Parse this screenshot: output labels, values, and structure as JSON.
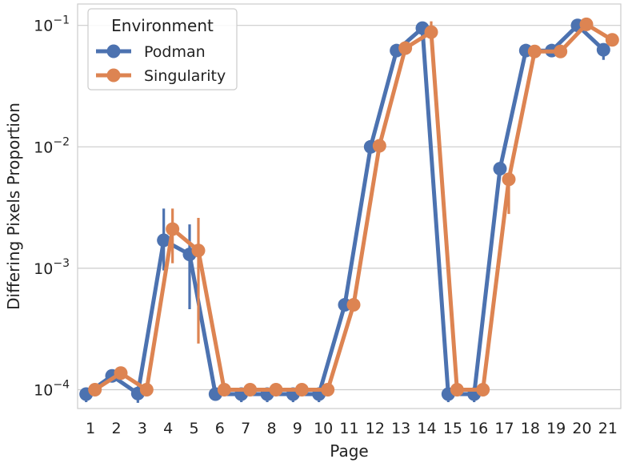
{
  "chart_data": {
    "type": "line",
    "xlabel": "Page",
    "ylabel": "Differing Pixels Proportion",
    "yscale": "log",
    "ylim": [
      7e-05,
      0.15
    ],
    "grid": true,
    "legend_placement": "top-left",
    "legend_title": "Environment",
    "x": [
      1,
      2,
      3,
      4,
      5,
      6,
      7,
      8,
      9,
      10,
      11,
      12,
      13,
      14,
      15,
      16,
      17,
      18,
      19,
      20,
      21
    ],
    "y_ticks": [
      {
        "value": 0.0001,
        "base": "10",
        "exp": "−4"
      },
      {
        "value": 0.001,
        "base": "10",
        "exp": "−3"
      },
      {
        "value": 0.01,
        "base": "10",
        "exp": "−2"
      },
      {
        "value": 0.1,
        "base": "10",
        "exp": "−1"
      }
    ],
    "series": [
      {
        "name": "Podman",
        "color": "#4c72b0",
        "values": [
          9.2e-05,
          0.00013,
          9.3e-05,
          0.0017,
          0.0013,
          9.2e-05,
          9.2e-05,
          9.2e-05,
          9.2e-05,
          9.2e-05,
          0.0005,
          0.01,
          0.062,
          0.095,
          9.2e-05,
          9.2e-05,
          0.0066,
          0.062,
          0.062,
          0.1,
          0.063
        ],
        "err_low": [
          7.9e-05,
          null,
          7.8e-05,
          0.00096,
          0.00046,
          null,
          7.9e-05,
          7.9e-05,
          7.9e-05,
          7.9e-05,
          null,
          null,
          null,
          null,
          7.9e-05,
          7.9e-05,
          null,
          null,
          null,
          null,
          0.052
        ],
        "err_high": [
          null,
          null,
          null,
          0.0031,
          0.0023,
          null,
          null,
          null,
          null,
          null,
          null,
          null,
          null,
          null,
          null,
          null,
          null,
          null,
          null,
          null,
          null
        ]
      },
      {
        "name": "Singularity",
        "color": "#dd8452",
        "values": [
          0.0001,
          0.000137,
          0.0001,
          0.0021,
          0.0014,
          0.0001,
          0.0001,
          0.0001,
          0.0001,
          0.0001,
          0.0005,
          0.0102,
          0.065,
          0.088,
          0.0001,
          0.0001,
          0.0054,
          0.061,
          0.061,
          0.102,
          0.076
        ],
        "err_low": [
          null,
          null,
          null,
          0.0011,
          0.00024,
          null,
          null,
          null,
          null,
          null,
          null,
          null,
          null,
          null,
          null,
          null,
          0.0028,
          null,
          null,
          null,
          null
        ],
        "err_high": [
          null,
          null,
          null,
          0.0031,
          0.0026,
          null,
          null,
          null,
          null,
          null,
          null,
          null,
          null,
          0.108,
          null,
          null,
          null,
          null,
          null,
          null,
          null
        ]
      }
    ]
  }
}
